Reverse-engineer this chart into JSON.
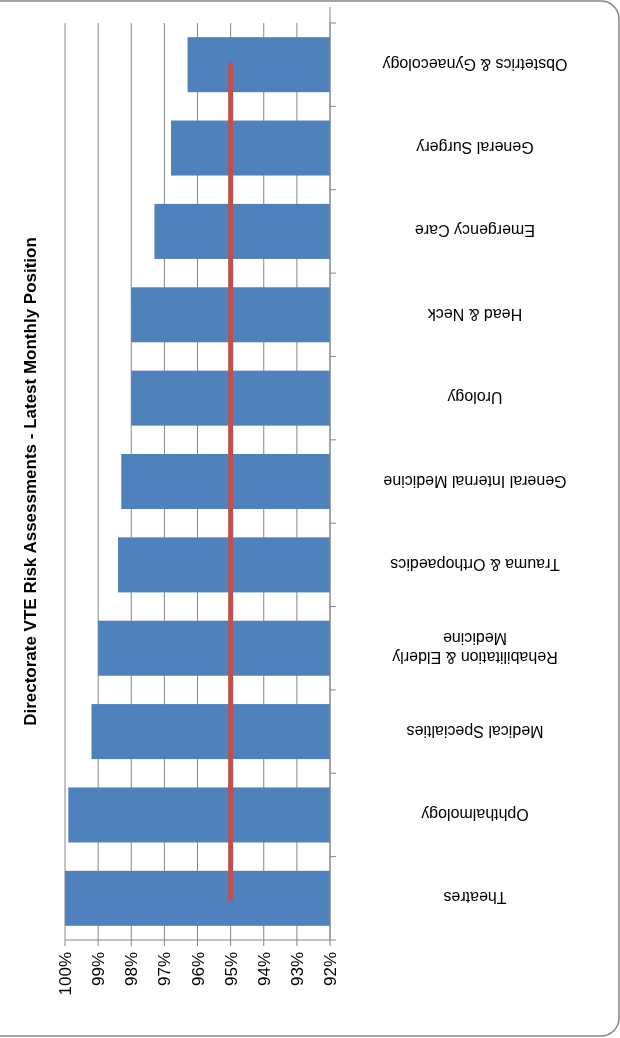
{
  "chart_data": {
    "type": "bar",
    "orientation": "horizontal",
    "title": "Directorate VTE Risk Assessments - Latest Monthly Position",
    "categories": [
      "Obstetrics & Gynaecology",
      "General Surgery",
      "Emergency Care",
      "Head & Neck",
      "Urology",
      "General Internal Medicine",
      "Trauma & Orthopaedics",
      "Rehabilitation & Elderly Medicine",
      "Medical Specialties",
      "Ophthalmology",
      "Theatres"
    ],
    "values": [
      96.3,
      96.8,
      97.3,
      98.0,
      98.0,
      98.3,
      98.4,
      99.0,
      99.2,
      99.9,
      100
    ],
    "color": "#4f81bd",
    "xlim": [
      100,
      92
    ],
    "xticks": [
      {
        "value": 100,
        "label": "100%"
      },
      {
        "value": 99,
        "label": "99%"
      },
      {
        "value": 98,
        "label": "98%"
      },
      {
        "value": 97,
        "label": "97%"
      },
      {
        "value": 96,
        "label": "96%"
      },
      {
        "value": 95,
        "label": "95%"
      },
      {
        "value": 94,
        "label": "94%"
      },
      {
        "value": 93,
        "label": "93%"
      },
      {
        "value": 92,
        "label": "92%"
      }
    ],
    "grid": "x",
    "ref_lines": [
      {
        "axis": "x",
        "value": 95,
        "color": "#c0504d"
      }
    ]
  }
}
